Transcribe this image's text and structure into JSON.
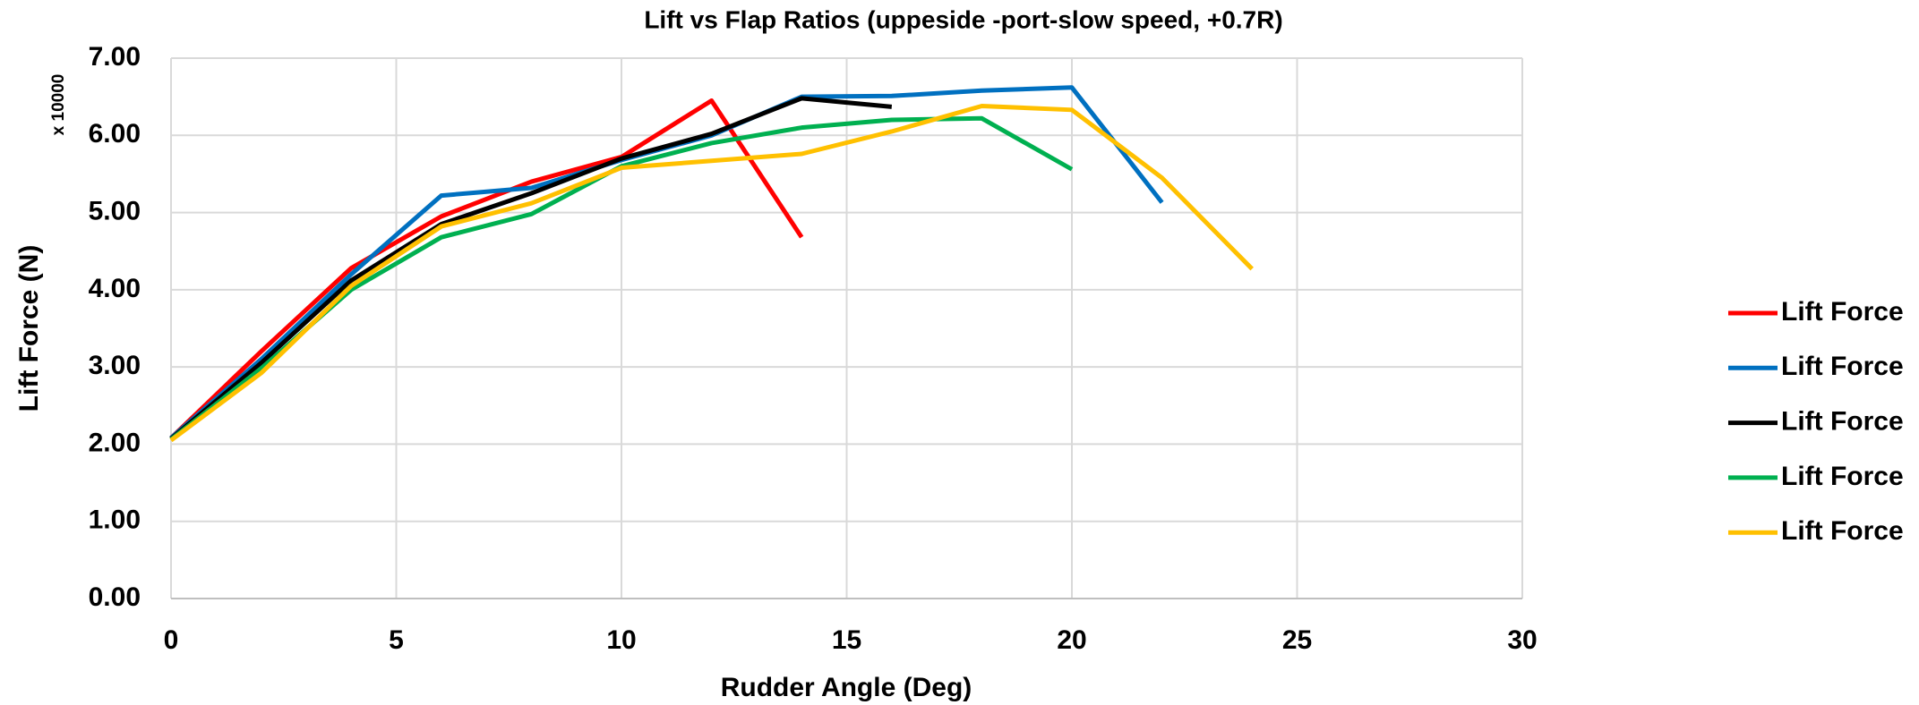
{
  "chart_data": {
    "type": "line",
    "title": "Lift vs Flap Ratios  (uppeside -port-slow speed, +0.7R)",
    "x_label": "Rudder Angle (Deg)",
    "y_label": "Lift  Force (N)",
    "y_multiplier": "x 10000",
    "x": [
      0,
      2,
      4,
      6,
      8,
      10,
      12,
      14,
      16,
      18,
      20,
      22,
      24
    ],
    "series": [
      {
        "name": "Lift Force",
        "color": "#ff0000",
        "values": [
          2.08,
          3.2,
          4.28,
          4.95,
          5.4,
          5.72,
          6.45,
          4.68,
          null,
          null,
          null,
          null,
          null
        ]
      },
      {
        "name": "Lift Force",
        "color": "#0070c0",
        "values": [
          2.08,
          3.1,
          4.2,
          5.22,
          5.32,
          5.68,
          6.0,
          6.5,
          6.51,
          6.58,
          6.62,
          5.13,
          null
        ]
      },
      {
        "name": "Lift Force",
        "color": "#000000",
        "values": [
          2.07,
          3.05,
          4.12,
          4.85,
          5.25,
          5.7,
          6.02,
          6.48,
          6.37,
          null,
          null,
          null,
          null
        ]
      },
      {
        "name": "Lift Force",
        "color": "#00b050",
        "values": [
          2.06,
          2.98,
          4.0,
          4.68,
          4.98,
          5.6,
          5.9,
          6.1,
          6.2,
          6.22,
          5.56,
          null,
          null
        ]
      },
      {
        "name": "Lift Force",
        "color": "#ffc000",
        "values": [
          2.05,
          2.92,
          4.05,
          4.82,
          5.12,
          5.58,
          5.67,
          5.76,
          6.05,
          6.38,
          6.33,
          5.45,
          4.27
        ]
      }
    ],
    "xlim": [
      0,
      30
    ],
    "xticks": [
      0,
      5,
      10,
      15,
      20,
      25,
      30
    ],
    "ylim": [
      0,
      7
    ],
    "yticks": [
      {
        "value": 0,
        "label": "0.00"
      },
      {
        "value": 1,
        "label": "1.00"
      },
      {
        "value": 2,
        "label": "2.00"
      },
      {
        "value": 3,
        "label": "3.00"
      },
      {
        "value": 4,
        "label": "4.00"
      },
      {
        "value": 5,
        "label": "5.00"
      },
      {
        "value": 6,
        "label": "6.00"
      },
      {
        "value": 7,
        "label": "7.00"
      }
    ],
    "grid": true,
    "legend": "right"
  }
}
